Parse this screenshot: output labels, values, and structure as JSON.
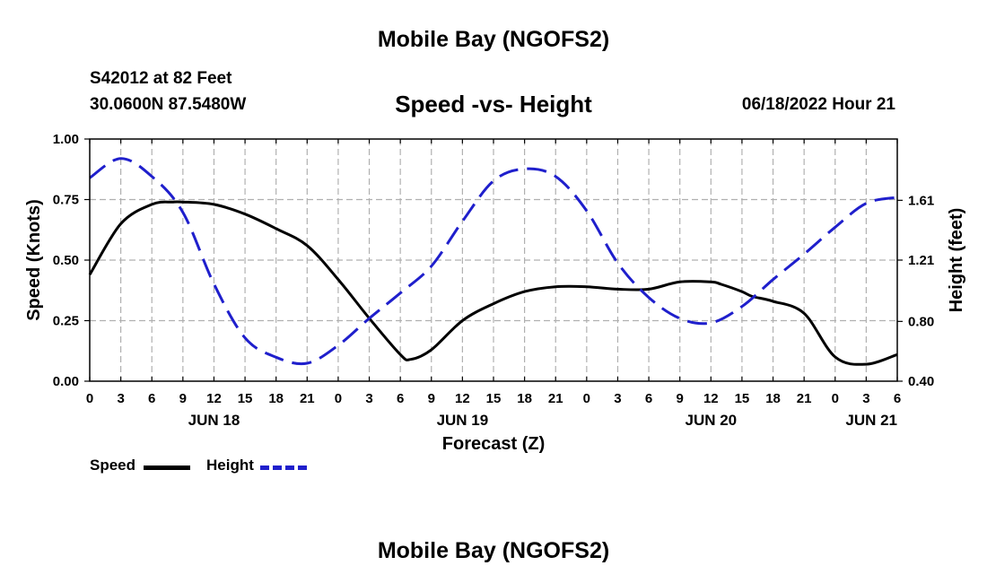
{
  "page": {
    "title": "Mobile Bay (NGOFS2)",
    "title_repeat": "Mobile Bay (NGOFS2)"
  },
  "header": {
    "station": "S42012 at 82 Feet",
    "coords": "30.0600N  87.5480W",
    "datetime": "06/18/2022 Hour 21"
  },
  "chart_data": {
    "type": "line",
    "title": "Speed -vs- Height",
    "xlabel": "Forecast (Z)",
    "ylabel_left": "Speed (Knots)",
    "ylabel_right": "Height (feet)",
    "grid": true,
    "legend_position": "bottom-left",
    "x_range": [
      0,
      78
    ],
    "x_tick_labels": [
      "0",
      "3",
      "6",
      "9",
      "12",
      "15",
      "18",
      "21",
      "0",
      "3",
      "6",
      "9",
      "12",
      "15",
      "18",
      "21",
      "0",
      "3",
      "6",
      "9",
      "12",
      "15",
      "18",
      "21",
      "0",
      "3",
      "6"
    ],
    "date_labels": [
      {
        "label": "JUN 18",
        "hour": 12
      },
      {
        "label": "JUN 19",
        "hour": 36
      },
      {
        "label": "JUN 20",
        "hour": 60
      },
      {
        "label": "JUN 21",
        "hour": 78
      }
    ],
    "y_left": {
      "range": [
        0,
        1.0
      ],
      "ticks": [
        "0.00",
        "0.25",
        "0.50",
        "0.75",
        "1.00"
      ]
    },
    "y_right": {
      "range": [
        0.4,
        2.02
      ],
      "ticks": [
        "0.40",
        "0.80",
        "1.21",
        "1.61"
      ],
      "tick_values": [
        0.4,
        0.8,
        1.21,
        1.61
      ]
    },
    "series": [
      {
        "name": "Speed",
        "axis": "left",
        "color": "#000000",
        "dash": "solid",
        "x": [
          0,
          3,
          6,
          8,
          9,
          12,
          15,
          18,
          21,
          24,
          27,
          30,
          31,
          33,
          36,
          39,
          42,
          45,
          48,
          51,
          54,
          57,
          60,
          61,
          63,
          64,
          66,
          69,
          72,
          75,
          78
        ],
        "y": [
          0.44,
          0.65,
          0.73,
          0.74,
          0.74,
          0.73,
          0.69,
          0.63,
          0.56,
          0.42,
          0.26,
          0.11,
          0.09,
          0.13,
          0.25,
          0.32,
          0.37,
          0.39,
          0.39,
          0.38,
          0.38,
          0.41,
          0.41,
          0.4,
          0.37,
          0.35,
          0.33,
          0.28,
          0.1,
          0.07,
          0.11
        ]
      },
      {
        "name": "Height",
        "axis": "right",
        "color": "#1f1fcc",
        "dash": "dashed",
        "x": [
          0,
          3,
          6,
          9,
          12,
          15,
          18,
          21,
          24,
          27,
          30,
          33,
          36,
          39,
          42,
          45,
          48,
          51,
          54,
          57,
          60,
          63,
          66,
          69,
          72,
          75,
          78
        ],
        "y": [
          1.76,
          1.89,
          1.77,
          1.53,
          1.05,
          0.69,
          0.56,
          0.52,
          0.64,
          0.82,
          0.99,
          1.17,
          1.47,
          1.74,
          1.82,
          1.77,
          1.54,
          1.19,
          0.96,
          0.82,
          0.79,
          0.9,
          1.08,
          1.25,
          1.43,
          1.59,
          1.63
        ]
      }
    ]
  },
  "legend": {
    "items": [
      {
        "label": "Speed",
        "color": "#000000",
        "style": "solid"
      },
      {
        "label": "Height",
        "color": "#1f1fcc",
        "style": "dashed"
      }
    ]
  }
}
